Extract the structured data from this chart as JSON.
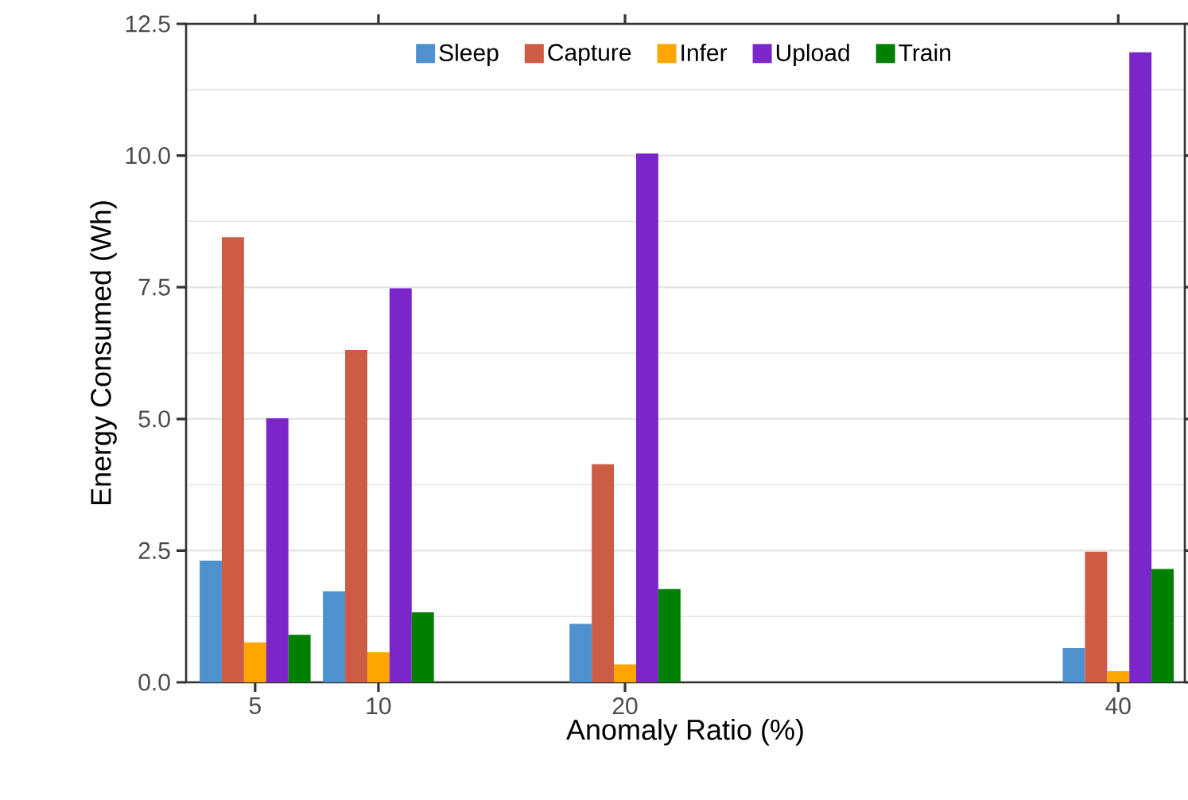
{
  "chart_data": {
    "type": "bar",
    "xlabel": "Anomaly Ratio (%)",
    "ylabel": "Energy Consumed (Wh)",
    "x": [
      5,
      10,
      20,
      40
    ],
    "series": [
      {
        "name": "Sleep",
        "color": "#4e91cf",
        "values": [
          2.31,
          1.73,
          1.11,
          0.65
        ]
      },
      {
        "name": "Capture",
        "color": "#cd5c45",
        "values": [
          8.45,
          6.31,
          4.14,
          2.48
        ]
      },
      {
        "name": "Infer",
        "color": "#ffa500",
        "values": [
          0.76,
          0.57,
          0.34,
          0.21
        ]
      },
      {
        "name": "Upload",
        "color": "#7b26c9",
        "values": [
          5.01,
          7.48,
          10.04,
          11.96
        ]
      },
      {
        "name": "Train",
        "color": "#008000",
        "values": [
          0.9,
          1.33,
          1.77,
          2.15
        ]
      }
    ],
    "xlim": [
      2.2,
      42.7
    ],
    "ylim": [
      0,
      12.5
    ],
    "xticks": [
      5,
      10,
      20,
      40
    ],
    "yticks": [
      {
        "value": 0,
        "label": "0.0"
      },
      {
        "value": 2.5,
        "label": "2.5"
      },
      {
        "value": 5,
        "label": "5.0"
      },
      {
        "value": 7.5,
        "label": "7.5"
      },
      {
        "value": 10,
        "label": "10.0"
      },
      {
        "value": 12.5,
        "label": "12.5"
      }
    ],
    "grid": "y",
    "legend": "top"
  }
}
